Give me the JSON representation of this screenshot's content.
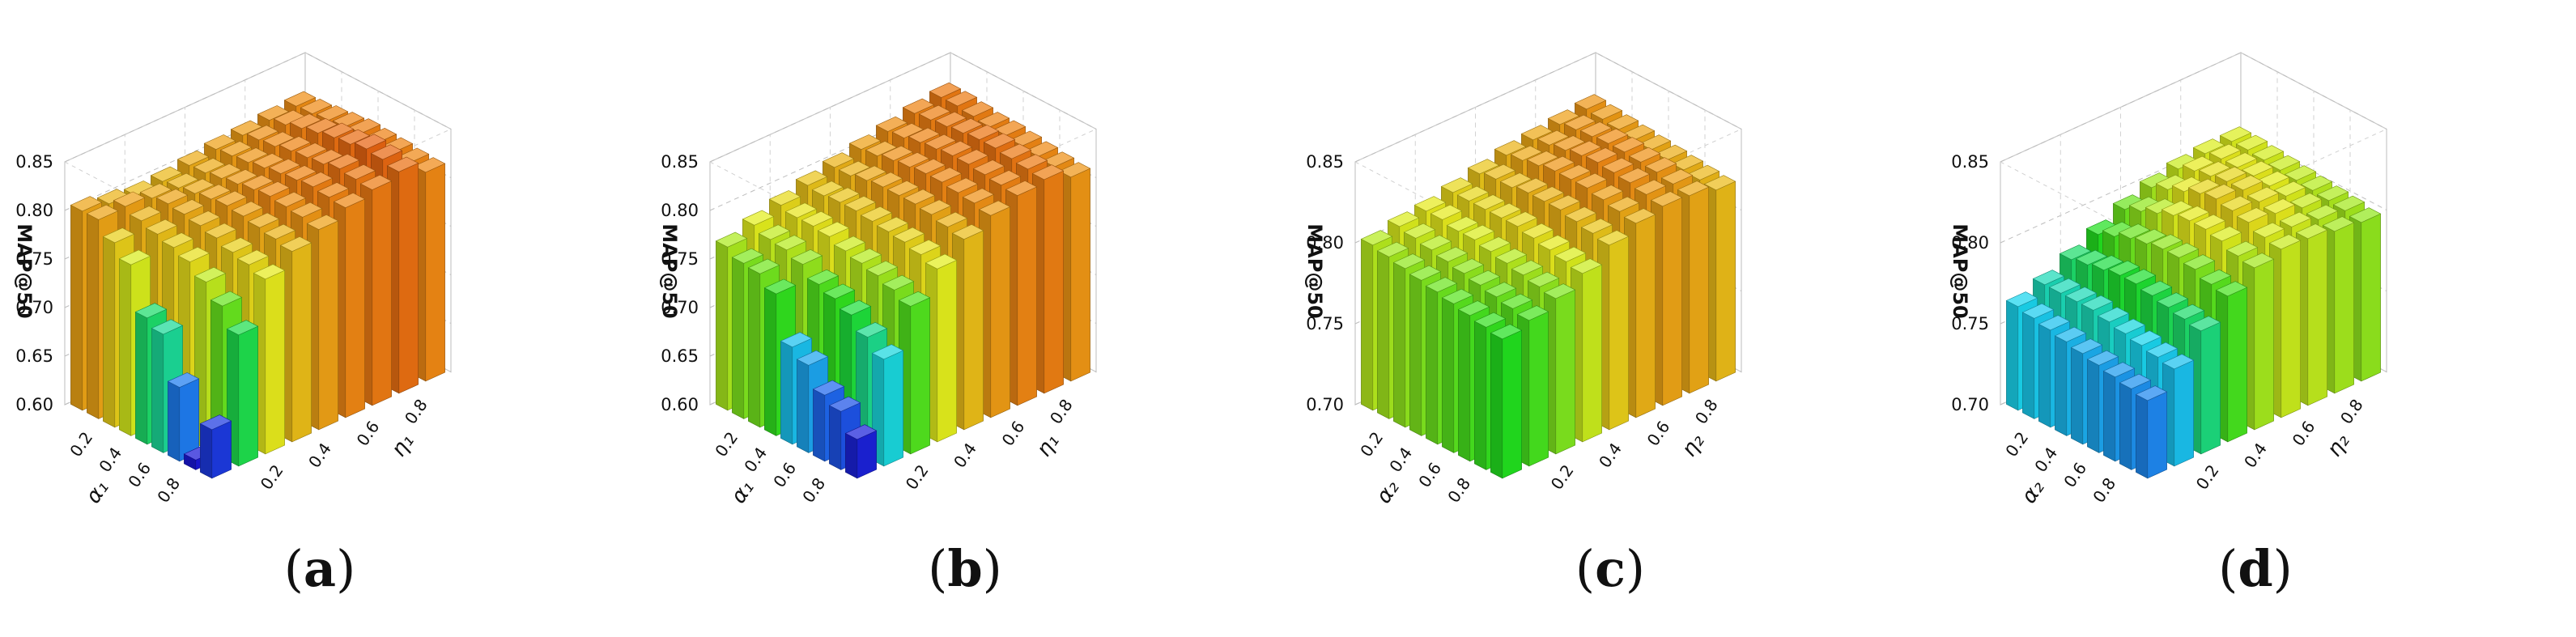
{
  "figure": {
    "panels": [
      {
        "caption_open": "(",
        "caption_letter": "a",
        "caption_close": ")"
      },
      {
        "caption_open": "(",
        "caption_letter": "b",
        "caption_close": ")"
      },
      {
        "caption_open": "(",
        "caption_letter": "c",
        "caption_close": ")"
      },
      {
        "caption_open": "(",
        "caption_letter": "d",
        "caption_close": ")"
      }
    ]
  },
  "colors": {
    "low": "#1a17d6",
    "mid_blue": "#1f6ff0",
    "cyan": "#19d6ee",
    "green": "#1fe01f",
    "yellow": "#e6ee1c",
    "orange": "#f08a14",
    "red": "#e0460f"
  },
  "chart_data": [
    {
      "type": "bar3d",
      "title": "",
      "zlabel": "MAP@50",
      "xlabel": "α₁",
      "ylabel": "η₁",
      "x": [
        0.1,
        0.2,
        0.3,
        0.4,
        0.5,
        0.6,
        0.7,
        0.8,
        0.9
      ],
      "y": [
        0.1,
        0.2,
        0.3,
        0.4,
        0.5,
        0.6,
        0.7,
        0.8,
        0.9
      ],
      "x_ticks": [
        "0.2",
        "0.4",
        "0.6",
        "0.8"
      ],
      "y_ticks": [
        "0.2",
        "0.4",
        "0.6",
        "0.8"
      ],
      "z_ticks": [
        "0.60",
        "0.65",
        "0.70",
        "0.75",
        "0.80",
        "0.85"
      ],
      "zlim": [
        0.6,
        0.85
      ],
      "values": [
        [
          0.805,
          0.8,
          0.796,
          0.798,
          0.802,
          0.806,
          0.808,
          0.811,
          0.813
        ],
        [
          0.805,
          0.806,
          0.802,
          0.8,
          0.803,
          0.808,
          0.812,
          0.815,
          0.814
        ],
        [
          0.79,
          0.8,
          0.805,
          0.803,
          0.806,
          0.81,
          0.814,
          0.82,
          0.816
        ],
        [
          0.776,
          0.795,
          0.803,
          0.806,
          0.809,
          0.813,
          0.818,
          0.824,
          0.818
        ],
        [
          0.73,
          0.79,
          0.8,
          0.808,
          0.812,
          0.816,
          0.82,
          0.828,
          0.82
        ],
        [
          0.722,
          0.784,
          0.796,
          0.806,
          0.814,
          0.818,
          0.822,
          0.83,
          0.819
        ],
        [
          0.676,
          0.772,
          0.79,
          0.803,
          0.812,
          0.82,
          0.826,
          0.834,
          0.818
        ],
        [
          0.61,
          0.756,
          0.786,
          0.8,
          0.81,
          0.818,
          0.824,
          0.832,
          0.816
        ],
        [
          0.65,
          0.735,
          0.78,
          0.796,
          0.806,
          0.816,
          0.822,
          0.828,
          0.815
        ]
      ]
    },
    {
      "type": "bar3d",
      "title": "",
      "zlabel": "MAP@50",
      "xlabel": "α₁",
      "ylabel": "η₁",
      "x": [
        0.1,
        0.2,
        0.3,
        0.4,
        0.5,
        0.6,
        0.7,
        0.8,
        0.9
      ],
      "y": [
        0.1,
        0.2,
        0.3,
        0.4,
        0.5,
        0.6,
        0.7,
        0.8,
        0.9
      ],
      "x_ticks": [
        "0.2",
        "0.4",
        "0.6",
        "0.8"
      ],
      "y_ticks": [
        "0.2",
        "0.4",
        "0.6",
        "0.8"
      ],
      "z_ticks": [
        "0.60",
        "0.65",
        "0.70",
        "0.75",
        "0.80",
        "0.85"
      ],
      "zlim": [
        0.6,
        0.85
      ],
      "values": [
        [
          0.768,
          0.778,
          0.786,
          0.794,
          0.8,
          0.806,
          0.812,
          0.818,
          0.822
        ],
        [
          0.76,
          0.772,
          0.782,
          0.792,
          0.8,
          0.808,
          0.814,
          0.82,
          0.822
        ],
        [
          0.758,
          0.77,
          0.782,
          0.794,
          0.804,
          0.812,
          0.818,
          0.822,
          0.82
        ],
        [
          0.746,
          0.764,
          0.78,
          0.794,
          0.806,
          0.814,
          0.82,
          0.824,
          0.818
        ],
        [
          0.7,
          0.752,
          0.774,
          0.792,
          0.806,
          0.816,
          0.822,
          0.826,
          0.818
        ],
        [
          0.69,
          0.746,
          0.77,
          0.79,
          0.806,
          0.816,
          0.822,
          0.826,
          0.816
        ],
        [
          0.668,
          0.738,
          0.766,
          0.788,
          0.804,
          0.814,
          0.82,
          0.824,
          0.814
        ],
        [
          0.66,
          0.724,
          0.76,
          0.784,
          0.8,
          0.812,
          0.818,
          0.822,
          0.812
        ],
        [
          0.64,
          0.71,
          0.752,
          0.778,
          0.796,
          0.808,
          0.816,
          0.82,
          0.81
        ]
      ]
    },
    {
      "type": "bar3d",
      "title": "",
      "zlabel": "MAP@50",
      "xlabel": "α₂",
      "ylabel": "η₂",
      "x": [
        0.1,
        0.2,
        0.3,
        0.4,
        0.5,
        0.6,
        0.7,
        0.8,
        0.9
      ],
      "y": [
        0.1,
        0.2,
        0.3,
        0.4,
        0.5,
        0.6,
        0.7,
        0.8,
        0.9
      ],
      "x_ticks": [
        "0.2",
        "0.4",
        "0.6",
        "0.8"
      ],
      "y_ticks": [
        "0.2",
        "0.4",
        "0.6",
        "0.8"
      ],
      "z_ticks": [
        "0.70",
        "0.75",
        "0.80",
        "0.85"
      ],
      "zlim": [
        0.7,
        0.85
      ],
      "values": [
        [
          0.802,
          0.806,
          0.808,
          0.812,
          0.816,
          0.82,
          0.822,
          0.824,
          0.826
        ],
        [
          0.8,
          0.804,
          0.808,
          0.812,
          0.818,
          0.822,
          0.824,
          0.826,
          0.825
        ],
        [
          0.798,
          0.802,
          0.806,
          0.812,
          0.818,
          0.824,
          0.826,
          0.827,
          0.824
        ],
        [
          0.796,
          0.8,
          0.806,
          0.812,
          0.82,
          0.826,
          0.828,
          0.828,
          0.823
        ],
        [
          0.794,
          0.798,
          0.804,
          0.812,
          0.82,
          0.826,
          0.829,
          0.828,
          0.822
        ],
        [
          0.792,
          0.796,
          0.802,
          0.81,
          0.82,
          0.826,
          0.828,
          0.827,
          0.821
        ],
        [
          0.79,
          0.794,
          0.8,
          0.808,
          0.818,
          0.824,
          0.827,
          0.826,
          0.82
        ],
        [
          0.788,
          0.792,
          0.798,
          0.806,
          0.816,
          0.822,
          0.825,
          0.824,
          0.819
        ],
        [
          0.786,
          0.79,
          0.796,
          0.804,
          0.814,
          0.82,
          0.823,
          0.822,
          0.818
        ]
      ]
    },
    {
      "type": "bar3d",
      "title": "",
      "zlabel": "MAP@50",
      "xlabel": "α₂",
      "ylabel": "η₂",
      "x": [
        0.1,
        0.2,
        0.3,
        0.4,
        0.5,
        0.6,
        0.7,
        0.8,
        0.9
      ],
      "y": [
        0.1,
        0.2,
        0.3,
        0.4,
        0.5,
        0.6,
        0.7,
        0.8,
        0.9
      ],
      "x_ticks": [
        "0.2",
        "0.4",
        "0.6",
        "0.8"
      ],
      "y_ticks": [
        "0.2",
        "0.4",
        "0.6",
        "0.8"
      ],
      "z_ticks": [
        "0.70",
        "0.75",
        "0.80",
        "0.85"
      ],
      "zlim": [
        0.7,
        0.85
      ],
      "values": [
        [
          0.764,
          0.77,
          0.778,
          0.786,
          0.794,
          0.8,
          0.804,
          0.806,
          0.806
        ],
        [
          0.762,
          0.77,
          0.78,
          0.79,
          0.798,
          0.804,
          0.808,
          0.808,
          0.806
        ],
        [
          0.76,
          0.77,
          0.782,
          0.794,
          0.802,
          0.808,
          0.81,
          0.808,
          0.805
        ],
        [
          0.758,
          0.77,
          0.784,
          0.796,
          0.806,
          0.812,
          0.812,
          0.808,
          0.804
        ],
        [
          0.756,
          0.768,
          0.784,
          0.798,
          0.808,
          0.814,
          0.812,
          0.807,
          0.803
        ],
        [
          0.754,
          0.766,
          0.782,
          0.798,
          0.808,
          0.812,
          0.81,
          0.806,
          0.802
        ],
        [
          0.752,
          0.764,
          0.78,
          0.796,
          0.806,
          0.81,
          0.808,
          0.804,
          0.801
        ],
        [
          0.75,
          0.762,
          0.778,
          0.792,
          0.802,
          0.806,
          0.805,
          0.802,
          0.8
        ],
        [
          0.748,
          0.76,
          0.776,
          0.79,
          0.8,
          0.804,
          0.803,
          0.8,
          0.798
        ]
      ]
    }
  ]
}
